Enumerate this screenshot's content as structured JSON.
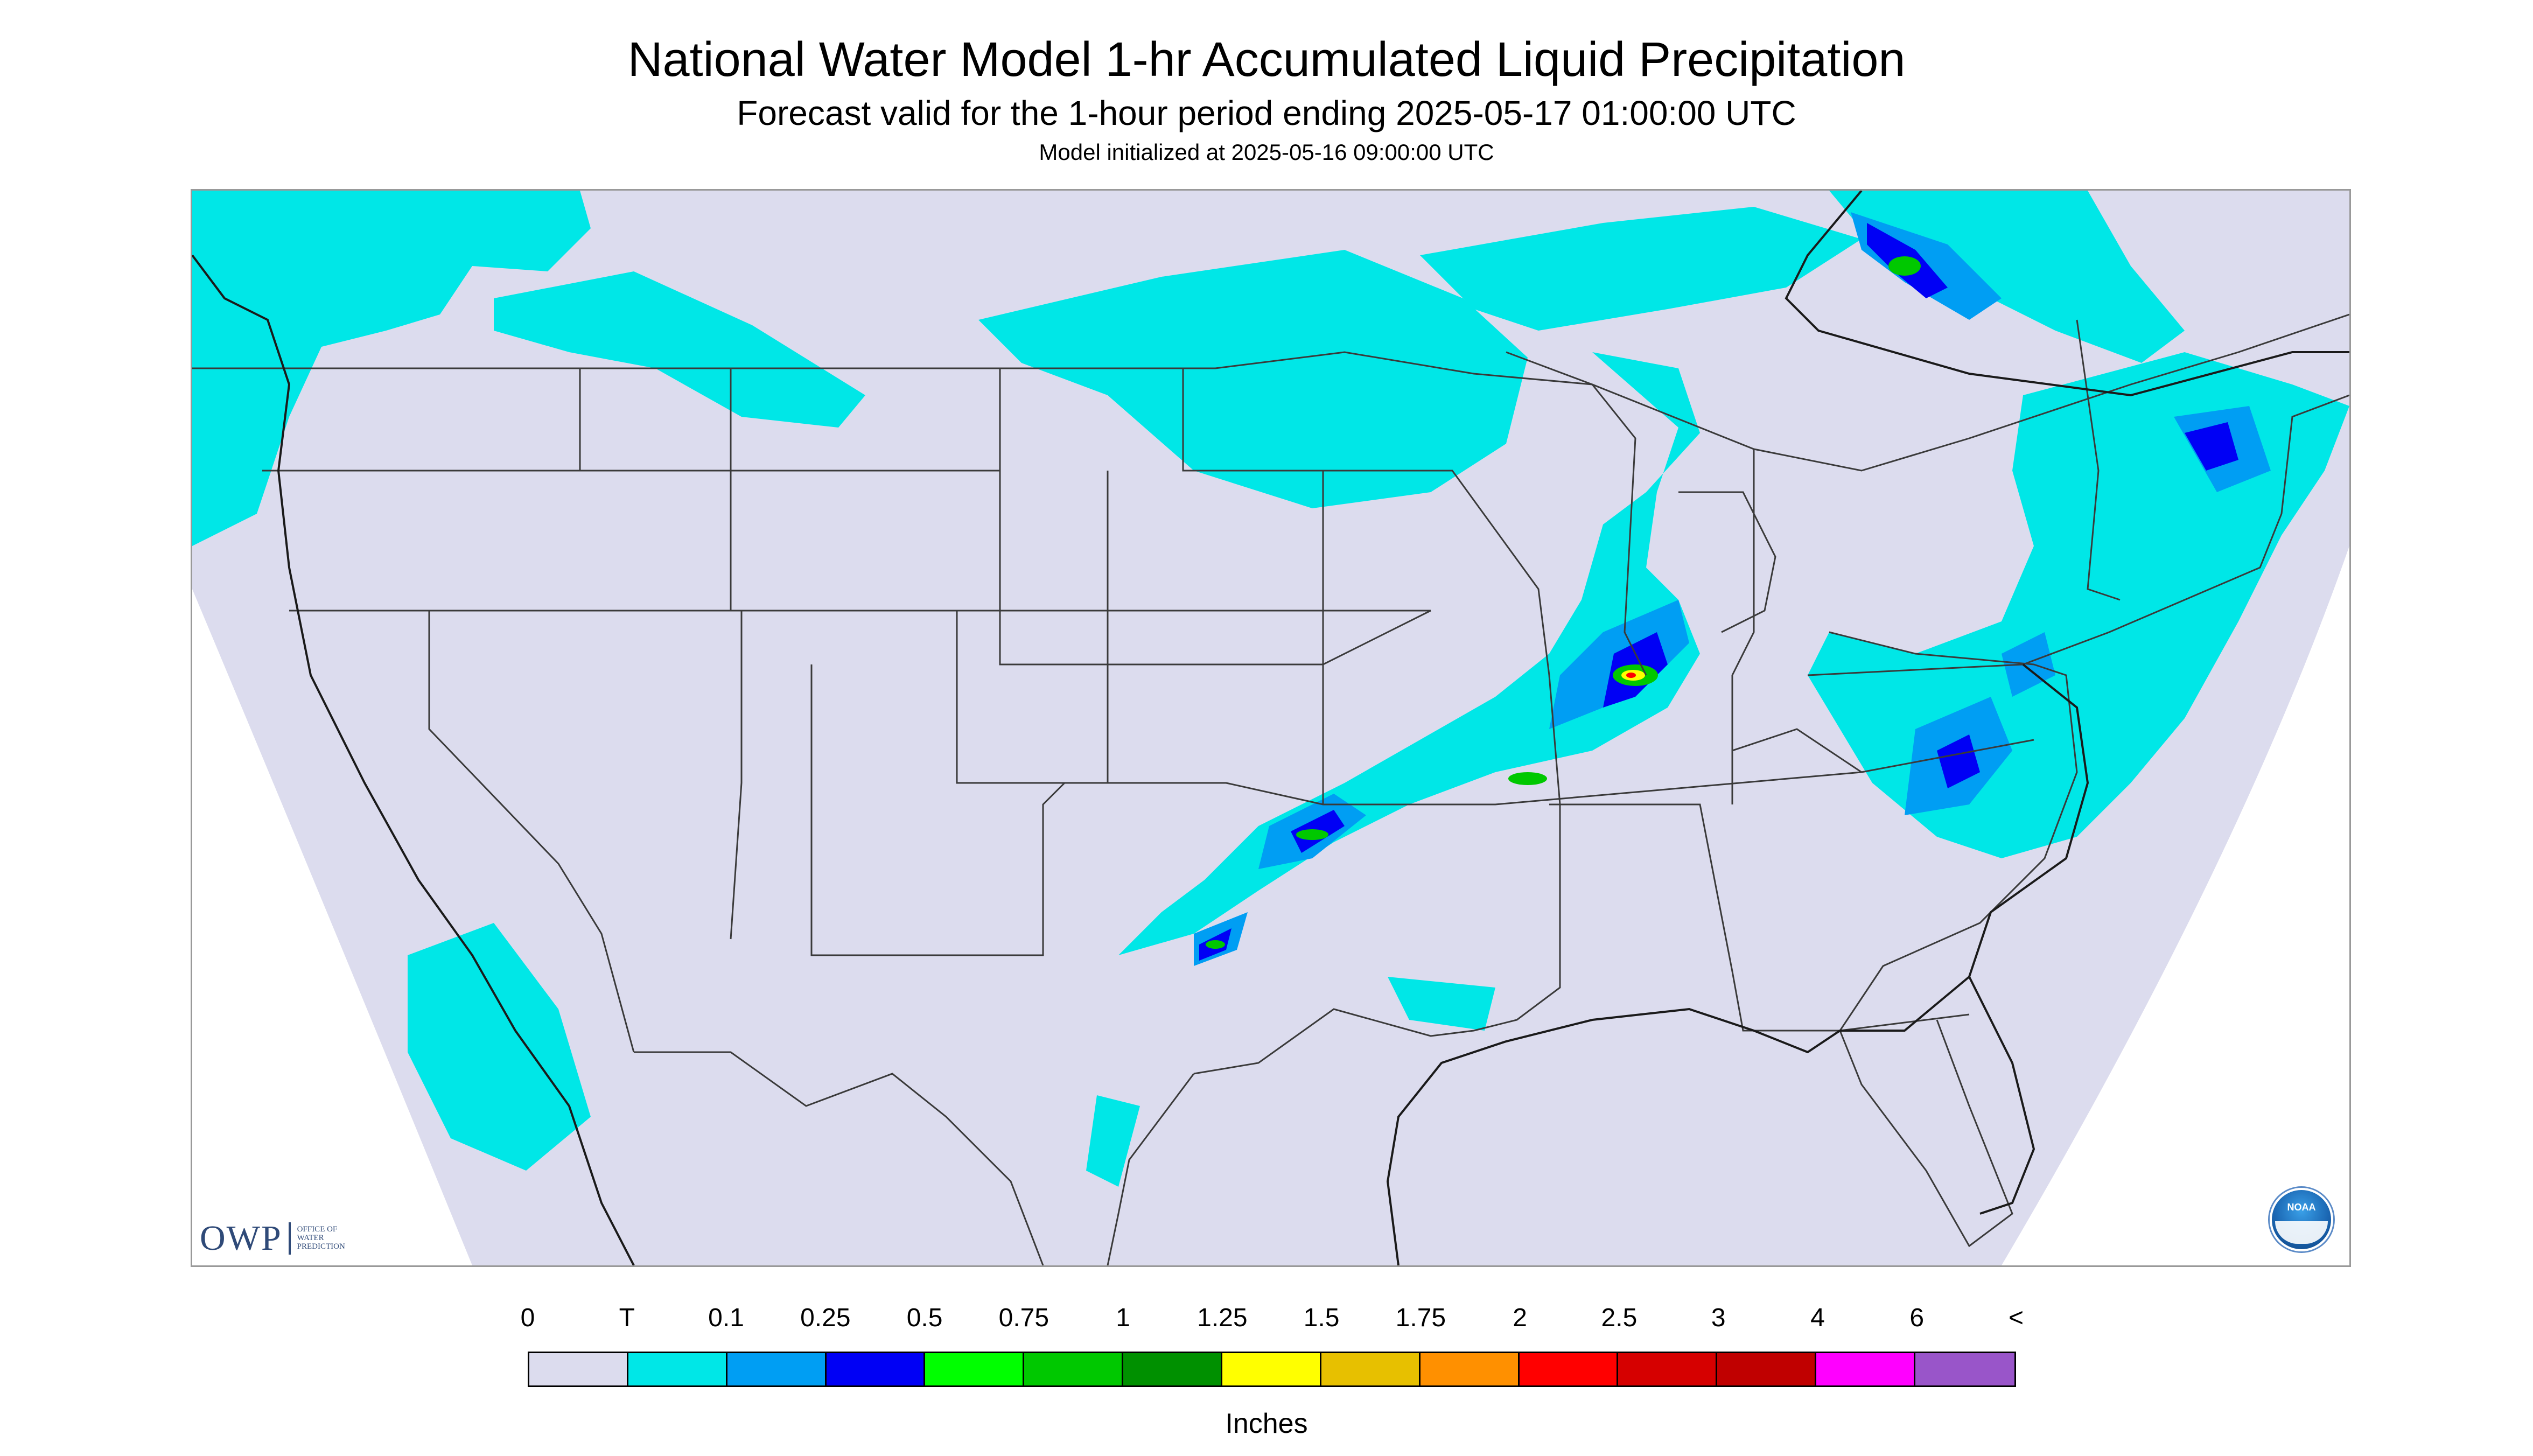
{
  "title": "National Water Model 1-hr Accumulated Liquid Precipitation",
  "subtitle": "Forecast valid for the 1-hour period ending 2025-05-17 01:00:00 UTC",
  "initialized": "Model initialized at 2025-05-16 09:00:00 UTC",
  "logo": {
    "owp_text": "OWP",
    "owp_lines": [
      "OFFICE OF",
      "WATER",
      "PREDICTION"
    ],
    "noaa_text": "NOAA"
  },
  "legend": {
    "units": "Inches",
    "tick_labels": [
      "0",
      "T",
      "0.1",
      "0.25",
      "0.5",
      "0.75",
      "1",
      "1.25",
      "1.5",
      "1.75",
      "2",
      "2.5",
      "3",
      "4",
      "6",
      "<"
    ],
    "colors": [
      "#dcdcee",
      "#00e7e7",
      "#009ef3",
      "#0000f5",
      "#00ff00",
      "#00c800",
      "#009000",
      "#ffff00",
      "#e7c000",
      "#ff9000",
      "#ff0000",
      "#d60000",
      "#c00000",
      "#ff00ff",
      "#9955c9"
    ]
  },
  "colors": {
    "no_data": "#ffffff",
    "background": "#dcdcee",
    "boundary": "#3a3a3a"
  }
}
